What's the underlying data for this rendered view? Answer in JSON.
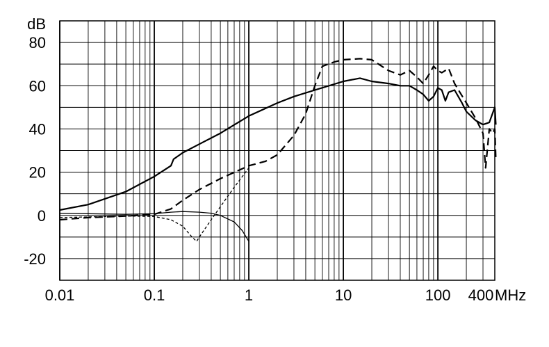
{
  "chart_data": {
    "type": "line",
    "title": "",
    "xlabel": "MHz",
    "ylabel": "dB",
    "x_scale": "log",
    "xlim": [
      0.01,
      400
    ],
    "ylim": [
      -30,
      90
    ],
    "grid": true,
    "legend": "none",
    "x_ticks": [
      {
        "value": 0.01,
        "label": "0.01"
      },
      {
        "value": 0.1,
        "label": "0.1"
      },
      {
        "value": 1,
        "label": "1"
      },
      {
        "value": 10,
        "label": "10"
      },
      {
        "value": 100,
        "label": "100"
      },
      {
        "value": 400,
        "label": "400"
      }
    ],
    "y_ticks": [
      {
        "value": 80,
        "label": "80"
      },
      {
        "value": 60,
        "label": "60"
      },
      {
        "value": 40,
        "label": "40"
      },
      {
        "value": 20,
        "label": "20"
      },
      {
        "value": 0,
        "label": "0"
      },
      {
        "value": -20,
        "label": "-20"
      }
    ],
    "series": [
      {
        "style": "solid-thick",
        "points": [
          [
            0.01,
            2.5
          ],
          [
            0.02,
            5
          ],
          [
            0.05,
            11
          ],
          [
            0.1,
            18
          ],
          [
            0.15,
            23
          ],
          [
            0.16,
            26
          ],
          [
            0.2,
            29
          ],
          [
            0.3,
            33
          ],
          [
            0.5,
            38
          ],
          [
            1,
            46
          ],
          [
            2,
            52
          ],
          [
            3,
            55
          ],
          [
            5,
            58
          ],
          [
            10,
            62
          ],
          [
            15,
            63.5
          ],
          [
            20,
            62
          ],
          [
            30,
            61
          ],
          [
            40,
            60
          ],
          [
            50,
            60
          ],
          [
            60,
            58
          ],
          [
            70,
            56
          ],
          [
            80,
            53
          ],
          [
            90,
            55
          ],
          [
            100,
            59
          ],
          [
            110,
            58
          ],
          [
            120,
            53
          ],
          [
            130,
            57
          ],
          [
            150,
            58
          ],
          [
            180,
            52
          ],
          [
            200,
            48
          ],
          [
            250,
            44
          ],
          [
            300,
            42
          ],
          [
            350,
            43
          ],
          [
            400,
            50
          ],
          [
            410,
            42
          ]
        ]
      },
      {
        "style": "dashed",
        "points": [
          [
            0.01,
            -2
          ],
          [
            0.02,
            -1
          ],
          [
            0.05,
            -0.3
          ],
          [
            0.1,
            0.5
          ],
          [
            0.15,
            3
          ],
          [
            0.2,
            7
          ],
          [
            0.3,
            12
          ],
          [
            0.5,
            17
          ],
          [
            1,
            23
          ],
          [
            1.5,
            25
          ],
          [
            2,
            28
          ],
          [
            3,
            37
          ],
          [
            4,
            47
          ],
          [
            5,
            60
          ],
          [
            6,
            69
          ],
          [
            8,
            71
          ],
          [
            10,
            72
          ],
          [
            15,
            72.5
          ],
          [
            20,
            72
          ],
          [
            30,
            67
          ],
          [
            40,
            65
          ],
          [
            50,
            67
          ],
          [
            60,
            64
          ],
          [
            70,
            61
          ],
          [
            80,
            65
          ],
          [
            90,
            69
          ],
          [
            100,
            67
          ],
          [
            110,
            66
          ],
          [
            130,
            68
          ],
          [
            150,
            61
          ],
          [
            200,
            52
          ],
          [
            250,
            45
          ],
          [
            300,
            38
          ],
          [
            320,
            22
          ],
          [
            350,
            40
          ],
          [
            380,
            38
          ],
          [
            400,
            40
          ],
          [
            410,
            26
          ]
        ]
      },
      {
        "style": "dotted",
        "points": [
          [
            0.01,
            -1
          ],
          [
            0.05,
            -0.3
          ],
          [
            0.1,
            -0.5
          ],
          [
            0.15,
            -2
          ],
          [
            0.2,
            -5
          ],
          [
            0.25,
            -10
          ],
          [
            0.28,
            -12
          ],
          [
            0.3,
            -10
          ],
          [
            0.4,
            -2
          ],
          [
            0.5,
            4
          ],
          [
            0.7,
            13
          ],
          [
            1,
            22
          ]
        ]
      },
      {
        "style": "solid-thin",
        "points": [
          [
            0.01,
            1
          ],
          [
            0.05,
            0.5
          ],
          [
            0.1,
            0.8
          ],
          [
            0.15,
            1.5
          ],
          [
            0.2,
            1.8
          ],
          [
            0.3,
            1.5
          ],
          [
            0.4,
            1
          ],
          [
            0.5,
            0
          ],
          [
            0.7,
            -3
          ],
          [
            0.85,
            -7
          ],
          [
            1,
            -12
          ]
        ]
      }
    ]
  }
}
